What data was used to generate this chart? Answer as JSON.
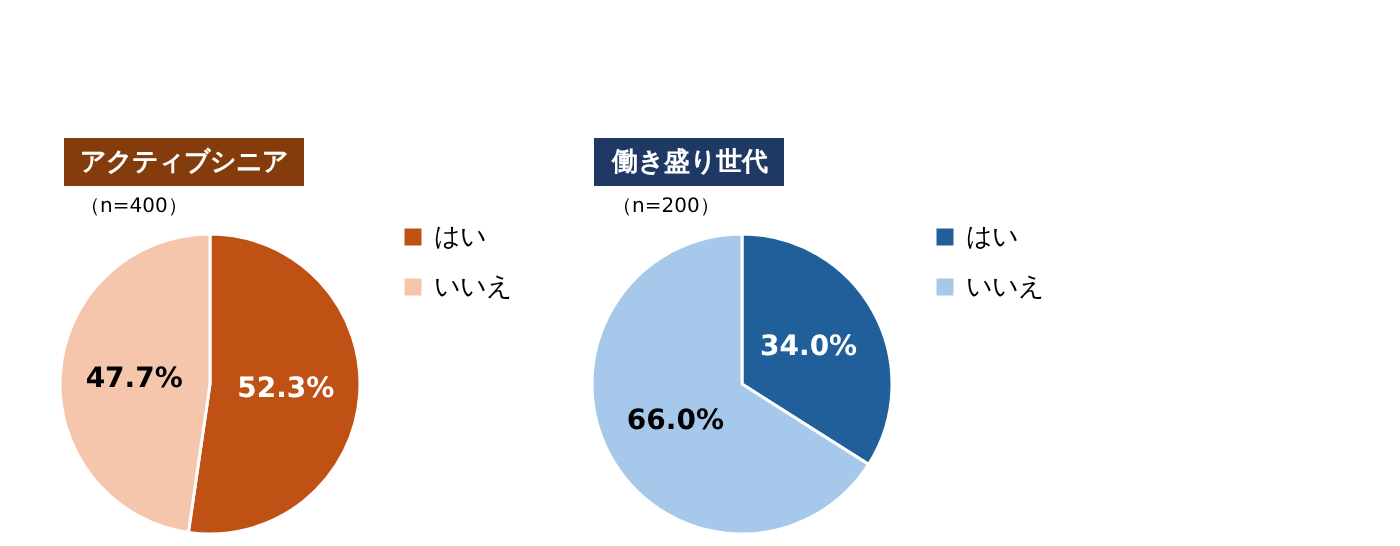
{
  "chart_data": [
    {
      "type": "pie",
      "title": "アクティブシニア",
      "subtitle": "（n=400）",
      "categories": [
        "はい",
        "いいえ"
      ],
      "values": [
        52.3,
        47.7
      ],
      "colors": [
        "#c05115",
        "#f5c6ac"
      ],
      "value_labels": [
        "52.3%",
        "47.7%"
      ],
      "legend": "right"
    },
    {
      "type": "pie",
      "title": "働き盛り世代",
      "subtitle": "（n=200）",
      "categories": [
        "はい",
        "いいえ"
      ],
      "values": [
        34.0,
        66.0
      ],
      "colors": [
        "#215f9a",
        "#a6c8ea"
      ],
      "value_labels": [
        "34.0%",
        "66.0%"
      ],
      "legend": "right"
    }
  ]
}
